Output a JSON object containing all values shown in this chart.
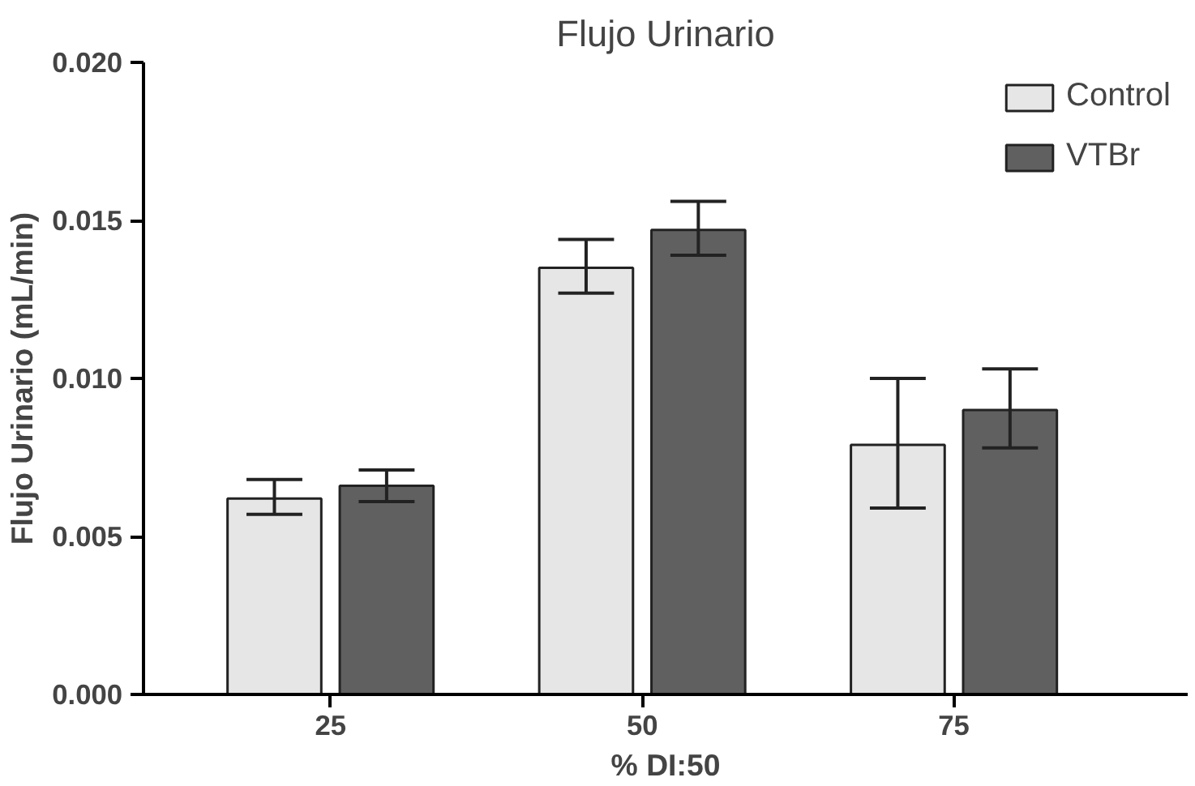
{
  "chart_data": {
    "type": "bar",
    "title": "Flujo Urinario",
    "xlabel": "% DI:50",
    "ylabel": "Flujo Urinario (mL/min)",
    "categories": [
      "25",
      "50",
      "75"
    ],
    "series": [
      {
        "name": "Control",
        "color": "#e6e6e6",
        "values": [
          0.0062,
          0.0135,
          0.0079
        ],
        "errors": [
          [
            0.0057,
            0.0068
          ],
          [
            0.0127,
            0.0144
          ],
          [
            0.0059,
            0.01
          ]
        ]
      },
      {
        "name": "VTBr",
        "color": "#606060",
        "values": [
          0.0066,
          0.0147,
          0.009
        ],
        "errors": [
          [
            0.0061,
            0.0071
          ],
          [
            0.0139,
            0.0156
          ],
          [
            0.0078,
            0.0103
          ]
        ]
      }
    ],
    "ylim": [
      0,
      0.02
    ],
    "yticks": [
      {
        "value": 0,
        "label": "0.000"
      },
      {
        "value": 0.005,
        "label": "0.005"
      },
      {
        "value": 0.01,
        "label": "0.010"
      },
      {
        "value": 0.015,
        "label": "0.015"
      },
      {
        "value": 0.02,
        "label": "0.020"
      }
    ],
    "grid": false,
    "legend": "top right"
  }
}
